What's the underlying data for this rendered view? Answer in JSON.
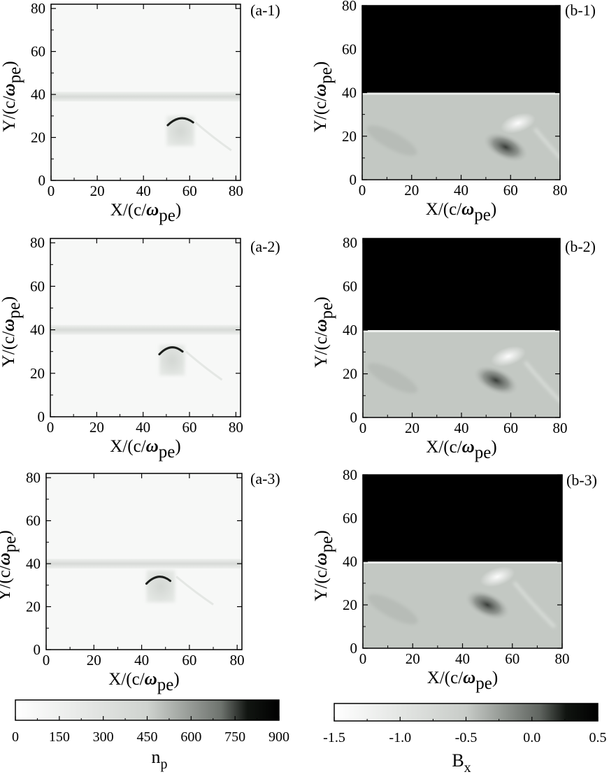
{
  "figure": {
    "colors": {
      "background": "#ffffff",
      "ink": "#000000"
    },
    "panels": [
      {
        "id": "a-1",
        "tag": "(a-1)",
        "field": "np",
        "frame": {
          "x_max": 82,
          "y_max": 82
        },
        "xticks": [
          0,
          20,
          40,
          60,
          80
        ],
        "yticks": [
          0,
          20,
          40,
          60,
          80
        ],
        "xlabel": "X/(c/",
        "xlabel_greek": "ω",
        "xlabel_sub": "pe",
        "xlabel_close": ")",
        "ylabel": "Y/(c/",
        "ylabel_greek": "ω",
        "ylabel_sub": "pe",
        "ylabel_close": ")",
        "features": {
          "band_y": 39,
          "box": [
            50,
            62,
            16,
            30
          ],
          "arc": {
            "cx": 56,
            "cy": 27,
            "rx": 5.5,
            "ry": 2.5
          }
        }
      },
      {
        "id": "b-1",
        "tag": "(b-1)",
        "field": "bx",
        "frame": {
          "x_max": 80,
          "y_max": 80
        },
        "xticks": [
          0,
          20,
          40,
          60,
          80
        ],
        "yticks": [
          0,
          20,
          40,
          60,
          80
        ],
        "xlabel": "X/(c/",
        "xlabel_greek": "ω",
        "xlabel_sub": "pe",
        "xlabel_close": ")",
        "ylabel": "Y/(c/",
        "ylabel_greek": "ω",
        "ylabel_sub": "pe",
        "ylabel_close": ")",
        "features": {
          "boundary_y": 40,
          "blob": {
            "cx": 58,
            "cy": 15
          },
          "bright": {
            "cx": 63,
            "cy": 26
          }
        }
      },
      {
        "id": "a-2",
        "tag": "(a-2)",
        "field": "np",
        "frame": {
          "x_max": 82,
          "y_max": 82
        },
        "xticks": [
          0,
          20,
          40,
          60,
          80
        ],
        "yticks": [
          0,
          20,
          40,
          60,
          80
        ],
        "xlabel": "X/(c/",
        "xlabel_greek": "ω",
        "xlabel_sub": "pe",
        "xlabel_close": ")",
        "ylabel": "Y/(c/",
        "ylabel_greek": "ω",
        "ylabel_sub": "pe",
        "ylabel_close": ")",
        "features": {
          "band_y": 40,
          "box": [
            47,
            58,
            19,
            33
          ],
          "arc": {
            "cx": 52,
            "cy": 30,
            "rx": 5,
            "ry": 2.5
          }
        }
      },
      {
        "id": "b-2",
        "tag": "(b-2)",
        "field": "bx",
        "frame": {
          "x_max": 80,
          "y_max": 82
        },
        "xticks": [
          0,
          20,
          40,
          60,
          80
        ],
        "yticks": [
          0,
          20,
          40,
          60,
          80
        ],
        "xlabel": "X/(c/",
        "xlabel_greek": "ω",
        "xlabel_sub": "pe",
        "xlabel_close": ")",
        "ylabel": "Y/(c/",
        "ylabel_greek": "ω",
        "ylabel_sub": "pe",
        "ylabel_close": ")",
        "features": {
          "boundary_y": 40,
          "blob": {
            "cx": 54,
            "cy": 17
          },
          "bright": {
            "cx": 59,
            "cy": 28
          }
        }
      },
      {
        "id": "a-3",
        "tag": "(a-3)",
        "field": "np",
        "frame": {
          "x_max": 82,
          "y_max": 82
        },
        "xticks": [
          0,
          20,
          40,
          60,
          80
        ],
        "yticks": [
          0,
          20,
          40,
          60,
          80
        ],
        "xlabel": "X/(c/",
        "xlabel_greek": "ω",
        "xlabel_sub": "pe",
        "xlabel_close": ")",
        "ylabel": "Y/(c/",
        "ylabel_greek": "ω",
        "ylabel_sub": "pe",
        "ylabel_close": ")",
        "features": {
          "band_y": 40,
          "box": [
            42,
            54,
            22,
            37
          ],
          "arc": {
            "cx": 47,
            "cy": 32,
            "rx": 5,
            "ry": 2.5
          }
        }
      },
      {
        "id": "b-3",
        "tag": "(b-3)",
        "field": "bx",
        "frame": {
          "x_max": 80,
          "y_max": 80
        },
        "xticks": [
          0,
          20,
          40,
          60,
          80
        ],
        "yticks": [
          0,
          20,
          40,
          60,
          80
        ],
        "xlabel": "X/(c/",
        "xlabel_greek": "ω",
        "xlabel_sub": "pe",
        "xlabel_close": ")",
        "ylabel": "Y/(c/",
        "ylabel_greek": "ω",
        "ylabel_sub": "pe",
        "ylabel_close": ")",
        "features": {
          "boundary_y": 40,
          "blob": {
            "cx": 50,
            "cy": 20
          },
          "bright": {
            "cx": 54,
            "cy": 33
          }
        }
      }
    ],
    "colorbars": [
      {
        "id": "np",
        "range": [
          0,
          900
        ],
        "ticks": [
          "0",
          "150",
          "300",
          "450",
          "600",
          "750",
          "900"
        ],
        "title": "n",
        "title_sub": "p",
        "from_color": "#ffffff",
        "to_color": "#000000"
      },
      {
        "id": "bx",
        "range": [
          -1.5,
          0.5
        ],
        "ticks": [
          "-1.5",
          "-1.0",
          "-0.5",
          "0.0",
          "0.5"
        ],
        "title": "B",
        "title_sub": "x",
        "from_color": "#ffffff",
        "to_color": "#000000"
      }
    ]
  }
}
